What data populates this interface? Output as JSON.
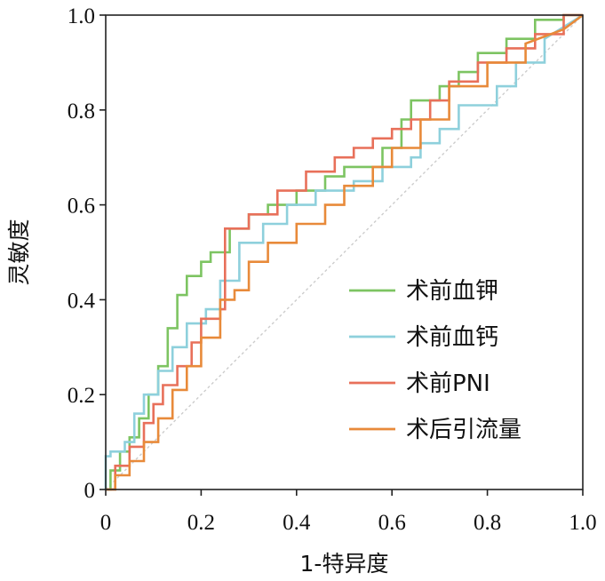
{
  "chart_data": {
    "type": "line",
    "title": "",
    "xlabel": "1-特异度",
    "ylabel": "灵敏度",
    "xlim": [
      0,
      1
    ],
    "ylim": [
      0,
      1
    ],
    "x_ticks": [
      "0",
      "0.2",
      "0.4",
      "0.6",
      "0.8",
      "1.0"
    ],
    "y_ticks": [
      "0",
      "0.2",
      "0.4",
      "0.6",
      "0.8",
      "1.0"
    ],
    "grid": false,
    "legend_position": "bottom-right",
    "reference_line": {
      "x": [
        0,
        1
      ],
      "y": [
        0,
        1
      ],
      "color": "#cccccc",
      "style": "dotted"
    },
    "series": [
      {
        "name": "术前血钾",
        "color": "#7dc462",
        "x": [
          0,
          0.01,
          0.01,
          0.03,
          0.03,
          0.05,
          0.05,
          0.07,
          0.07,
          0.09,
          0.09,
          0.11,
          0.11,
          0.13,
          0.13,
          0.15,
          0.15,
          0.17,
          0.17,
          0.2,
          0.2,
          0.22,
          0.22,
          0.26,
          0.26,
          0.3,
          0.3,
          0.34,
          0.34,
          0.4,
          0.4,
          0.46,
          0.46,
          0.5,
          0.5,
          0.58,
          0.58,
          0.62,
          0.62,
          0.64,
          0.64,
          0.7,
          0.7,
          0.74,
          0.74,
          0.78,
          0.78,
          0.84,
          0.84,
          0.9,
          0.9,
          0.96,
          0.96,
          1
        ],
        "y": [
          0,
          0,
          0.04,
          0.04,
          0.08,
          0.08,
          0.11,
          0.11,
          0.15,
          0.15,
          0.2,
          0.2,
          0.26,
          0.26,
          0.34,
          0.34,
          0.41,
          0.41,
          0.45,
          0.45,
          0.48,
          0.48,
          0.5,
          0.5,
          0.55,
          0.55,
          0.58,
          0.58,
          0.6,
          0.6,
          0.63,
          0.63,
          0.66,
          0.66,
          0.68,
          0.68,
          0.72,
          0.72,
          0.78,
          0.78,
          0.82,
          0.82,
          0.85,
          0.85,
          0.88,
          0.88,
          0.92,
          0.92,
          0.95,
          0.95,
          0.99,
          0.99,
          1,
          1
        ]
      },
      {
        "name": "术前血钙",
        "color": "#8ed0dc",
        "x": [
          0,
          0,
          0.01,
          0.01,
          0.04,
          0.04,
          0.06,
          0.06,
          0.08,
          0.08,
          0.11,
          0.11,
          0.14,
          0.14,
          0.17,
          0.17,
          0.21,
          0.21,
          0.24,
          0.24,
          0.28,
          0.28,
          0.33,
          0.33,
          0.38,
          0.38,
          0.44,
          0.44,
          0.52,
          0.52,
          0.58,
          0.58,
          0.64,
          0.64,
          0.66,
          0.66,
          0.7,
          0.7,
          0.74,
          0.74,
          0.82,
          0.82,
          0.86,
          0.86,
          0.92,
          0.92,
          1
        ],
        "y": [
          0,
          0.07,
          0.07,
          0.08,
          0.08,
          0.1,
          0.1,
          0.16,
          0.16,
          0.2,
          0.2,
          0.25,
          0.25,
          0.3,
          0.3,
          0.35,
          0.35,
          0.38,
          0.38,
          0.44,
          0.44,
          0.52,
          0.52,
          0.56,
          0.56,
          0.6,
          0.6,
          0.63,
          0.63,
          0.65,
          0.65,
          0.68,
          0.68,
          0.7,
          0.7,
          0.73,
          0.73,
          0.76,
          0.76,
          0.81,
          0.81,
          0.85,
          0.85,
          0.9,
          0.9,
          0.95,
          1
        ]
      },
      {
        "name": "术前PNI",
        "color": "#e8705a",
        "x": [
          0,
          0.02,
          0.02,
          0.05,
          0.05,
          0.08,
          0.08,
          0.1,
          0.1,
          0.12,
          0.12,
          0.15,
          0.15,
          0.18,
          0.18,
          0.2,
          0.2,
          0.24,
          0.24,
          0.25,
          0.25,
          0.3,
          0.3,
          0.36,
          0.36,
          0.42,
          0.42,
          0.48,
          0.48,
          0.52,
          0.52,
          0.56,
          0.56,
          0.6,
          0.6,
          0.64,
          0.64,
          0.68,
          0.68,
          0.72,
          0.72,
          0.78,
          0.78,
          0.84,
          0.84,
          0.9,
          0.9,
          0.96,
          0.96,
          1
        ],
        "y": [
          0,
          0,
          0.05,
          0.05,
          0.09,
          0.09,
          0.14,
          0.14,
          0.18,
          0.18,
          0.22,
          0.22,
          0.26,
          0.26,
          0.31,
          0.31,
          0.36,
          0.36,
          0.38,
          0.38,
          0.55,
          0.55,
          0.58,
          0.58,
          0.63,
          0.63,
          0.67,
          0.67,
          0.7,
          0.7,
          0.72,
          0.72,
          0.74,
          0.74,
          0.76,
          0.76,
          0.78,
          0.78,
          0.82,
          0.82,
          0.86,
          0.86,
          0.9,
          0.9,
          0.93,
          0.93,
          0.96,
          0.96,
          1,
          1
        ]
      },
      {
        "name": "术后引流量",
        "color": "#e88a3a",
        "x": [
          0,
          0.02,
          0.02,
          0.05,
          0.05,
          0.08,
          0.08,
          0.11,
          0.11,
          0.14,
          0.14,
          0.17,
          0.17,
          0.2,
          0.2,
          0.24,
          0.24,
          0.27,
          0.27,
          0.3,
          0.3,
          0.34,
          0.34,
          0.4,
          0.4,
          0.46,
          0.46,
          0.5,
          0.5,
          0.56,
          0.56,
          0.6,
          0.6,
          0.66,
          0.66,
          0.72,
          0.72,
          0.8,
          0.8,
          0.88,
          0.88,
          0.96,
          1
        ],
        "y": [
          0,
          0,
          0.03,
          0.03,
          0.06,
          0.06,
          0.1,
          0.1,
          0.15,
          0.15,
          0.21,
          0.21,
          0.26,
          0.26,
          0.32,
          0.32,
          0.4,
          0.4,
          0.42,
          0.42,
          0.48,
          0.48,
          0.52,
          0.52,
          0.56,
          0.56,
          0.6,
          0.6,
          0.64,
          0.64,
          0.68,
          0.68,
          0.72,
          0.72,
          0.78,
          0.78,
          0.85,
          0.85,
          0.9,
          0.9,
          0.94,
          0.97,
          1
        ]
      }
    ]
  }
}
